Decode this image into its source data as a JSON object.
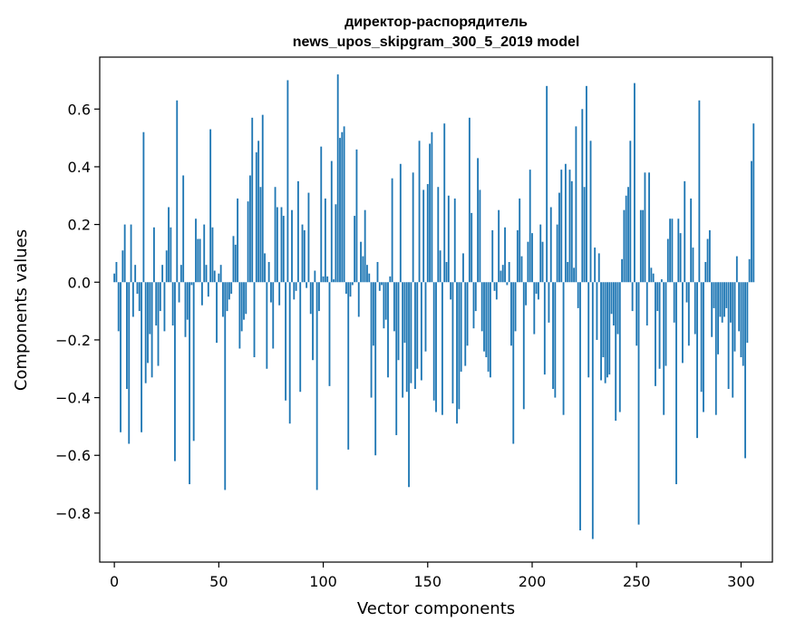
{
  "chart_data": {
    "type": "bar",
    "title_line1": "директор-распорядитель",
    "title_line2": "news_upos_skipgram_300_5_2019 model",
    "xlabel": "Vector components",
    "ylabel": "Components values",
    "xlim": [
      -7,
      315
    ],
    "ylim": [
      -0.97,
      0.78
    ],
    "xticks": [
      0,
      50,
      100,
      150,
      200,
      250,
      300
    ],
    "yticks": [
      -0.8,
      -0.6,
      -0.4,
      -0.2,
      0.0,
      0.2,
      0.4,
      0.6
    ],
    "ytick_labels": [
      "−0.8",
      "−0.6",
      "−0.4",
      "−0.2",
      "0.0",
      "0.2",
      "0.4",
      "0.6"
    ],
    "color": "#1f77b4",
    "grid": false,
    "legend": "none",
    "values": [
      0.03,
      0.07,
      -0.17,
      -0.52,
      0.11,
      0.2,
      -0.37,
      -0.56,
      0.2,
      -0.12,
      0.06,
      -0.04,
      -0.1,
      -0.52,
      0.52,
      -0.35,
      -0.28,
      -0.18,
      -0.33,
      0.19,
      -0.15,
      -0.29,
      -0.1,
      0.06,
      -0.17,
      0.11,
      0.26,
      0.19,
      -0.15,
      -0.62,
      0.63,
      -0.07,
      0.06,
      0.37,
      -0.19,
      -0.13,
      -0.7,
      -0.01,
      -0.55,
      0.22,
      0.15,
      0.15,
      -0.08,
      0.2,
      0.06,
      -0.05,
      0.53,
      0.19,
      0.04,
      -0.21,
      0.03,
      0.06,
      -0.12,
      -0.72,
      -0.1,
      -0.06,
      -0.04,
      0.16,
      0.13,
      0.29,
      -0.23,
      -0.17,
      -0.13,
      -0.11,
      0.28,
      0.37,
      0.57,
      -0.26,
      0.45,
      0.49,
      0.33,
      0.58,
      0.1,
      -0.3,
      0.07,
      -0.07,
      -0.23,
      0.33,
      0.26,
      -0.08,
      0.26,
      0.23,
      -0.41,
      0.7,
      -0.49,
      0.25,
      -0.06,
      -0.03,
      0.35,
      -0.38,
      0.2,
      0.18,
      -0.02,
      0.31,
      -0.11,
      -0.27,
      0.04,
      -0.72,
      -0.1,
      0.47,
      0.02,
      0.29,
      0.02,
      -0.36,
      0.42,
      0.01,
      0.27,
      0.72,
      0.5,
      0.52,
      0.54,
      -0.04,
      -0.58,
      -0.05,
      -0.01,
      0.23,
      0.46,
      -0.12,
      0.14,
      0.09,
      0.25,
      0.06,
      0.03,
      -0.4,
      -0.22,
      -0.6,
      0.07,
      -0.03,
      -0.01,
      -0.16,
      -0.13,
      -0.33,
      0.02,
      0.36,
      -0.17,
      -0.53,
      -0.27,
      0.41,
      -0.4,
      -0.21,
      -0.38,
      -0.71,
      -0.35,
      0.38,
      -0.37,
      -0.3,
      0.49,
      -0.34,
      0.32,
      -0.24,
      0.34,
      0.48,
      0.52,
      -0.41,
      -0.45,
      0.33,
      0.11,
      -0.46,
      0.55,
      0.07,
      0.3,
      -0.06,
      -0.42,
      0.29,
      -0.49,
      -0.44,
      -0.31,
      0.1,
      -0.29,
      -0.22,
      0.57,
      0.24,
      -0.16,
      -0.1,
      0.43,
      0.32,
      -0.17,
      -0.24,
      -0.26,
      -0.31,
      -0.33,
      0.18,
      -0.03,
      -0.06,
      0.25,
      0.04,
      0.06,
      0.19,
      -0.01,
      0.07,
      -0.22,
      -0.56,
      -0.17,
      0.18,
      0.29,
      0.09,
      -0.44,
      -0.08,
      0.14,
      0.39,
      0.17,
      -0.18,
      -0.04,
      -0.06,
      0.2,
      0.14,
      -0.32,
      0.68,
      -0.14,
      0.26,
      -0.37,
      -0.4,
      0.2,
      0.31,
      0.39,
      -0.46,
      0.41,
      0.07,
      0.39,
      0.35,
      0.05,
      0.54,
      -0.09,
      -0.86,
      0.6,
      0.33,
      0.68,
      -0.33,
      0.49,
      -0.89,
      0.12,
      -0.2,
      0.1,
      -0.34,
      -0.26,
      -0.35,
      -0.33,
      -0.32,
      -0.11,
      -0.15,
      -0.48,
      -0.18,
      -0.45,
      0.08,
      0.25,
      0.3,
      0.33,
      0.49,
      -0.1,
      0.69,
      -0.22,
      -0.84,
      0.25,
      0.25,
      0.38,
      -0.15,
      0.38,
      0.05,
      0.03,
      -0.36,
      -0.1,
      -0.3,
      0.01,
      -0.46,
      -0.29,
      0.15,
      0.22,
      0.22,
      -0.14,
      -0.7,
      0.22,
      0.17,
      -0.28,
      0.35,
      -0.07,
      -0.22,
      0.29,
      0.12,
      -0.18,
      -0.54,
      0.63,
      -0.38,
      -0.45,
      0.07,
      0.15,
      0.18,
      -0.19,
      -0.09,
      -0.46,
      -0.25,
      -0.12,
      -0.14,
      -0.12,
      -0.09,
      -0.37,
      -0.14,
      -0.4,
      -0.24,
      0.09,
      -0.17,
      -0.26,
      -0.29,
      -0.61,
      -0.21,
      0.08,
      0.42,
      0.55
    ]
  }
}
